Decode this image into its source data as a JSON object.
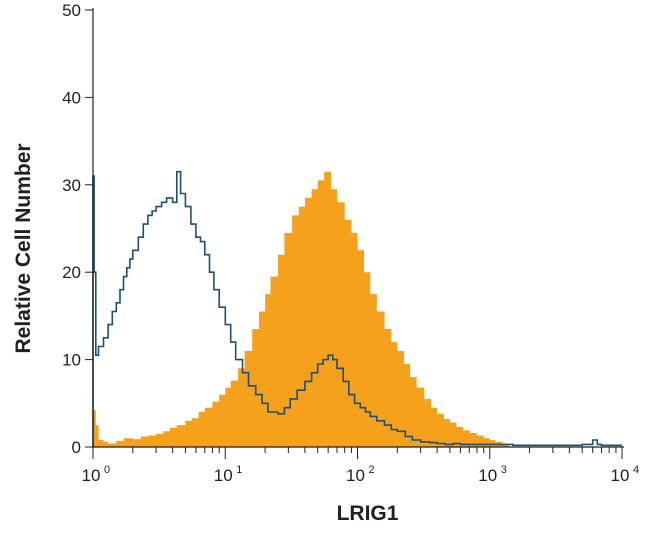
{
  "chart_data": {
    "type": "area",
    "xlabel": "LRIG1",
    "ylabel": "Relative Cell Number",
    "x_scale": "log",
    "xlim": [
      1,
      10000
    ],
    "ylim": [
      0,
      50
    ],
    "x_ticks": [
      {
        "value": 1,
        "base": "10",
        "exp": "0"
      },
      {
        "value": 10,
        "base": "10",
        "exp": "1"
      },
      {
        "value": 100,
        "base": "10",
        "exp": "2"
      },
      {
        "value": 1000,
        "base": "10",
        "exp": "3"
      },
      {
        "value": 10000,
        "base": "10",
        "exp": "4"
      }
    ],
    "y_ticks": [
      {
        "value": 0,
        "label": "0"
      },
      {
        "value": 10,
        "label": "10"
      },
      {
        "value": 20,
        "label": "20"
      },
      {
        "value": 30,
        "label": "30"
      },
      {
        "value": 40,
        "label": "40"
      },
      {
        "value": 50,
        "label": "50"
      }
    ],
    "grid": false,
    "legend": "none",
    "series": [
      {
        "style": "filled",
        "color": "#f5a11c",
        "x": [
          1.0,
          1.05,
          1.1,
          1.2,
          1.3,
          1.5,
          1.7,
          2.0,
          2.3,
          2.6,
          3.0,
          3.4,
          3.8,
          4.3,
          5.0,
          5.6,
          6.3,
          7.0,
          8.0,
          9.0,
          10,
          11,
          12.5,
          14,
          16,
          18,
          20,
          22,
          25,
          28,
          32,
          36,
          40,
          45,
          50,
          56,
          63,
          70,
          80,
          90,
          100,
          112,
          125,
          140,
          160,
          180,
          200,
          225,
          250,
          280,
          320,
          360,
          400,
          450,
          500,
          560,
          630,
          710,
          800,
          900,
          1000,
          1100,
          1250,
          1400
        ],
        "y": [
          4.2,
          2.5,
          0.8,
          0.6,
          0.4,
          0.7,
          1.0,
          0.9,
          1.2,
          1.3,
          1.5,
          1.8,
          2.2,
          2.5,
          3.0,
          3.3,
          4.0,
          4.5,
          5.2,
          6.0,
          6.8,
          7.6,
          9.0,
          11.0,
          13.5,
          15.5,
          17.5,
          19.5,
          22.0,
          24.5,
          26.5,
          27.5,
          28.5,
          29.5,
          30.5,
          31.5,
          29.5,
          28.0,
          26.0,
          24.5,
          22.5,
          20.0,
          17.5,
          15.5,
          13.5,
          12.0,
          11.0,
          9.5,
          8.0,
          6.8,
          5.5,
          4.5,
          3.8,
          3.2,
          2.8,
          2.3,
          1.9,
          1.6,
          1.3,
          1.0,
          0.8,
          0.6,
          0.4,
          0
        ]
      },
      {
        "style": "outline",
        "color": "#1f4f73",
        "x": [
          1.0,
          1.02,
          1.05,
          1.1,
          1.2,
          1.3,
          1.4,
          1.5,
          1.6,
          1.7,
          1.8,
          1.9,
          2.0,
          2.2,
          2.4,
          2.6,
          2.8,
          3.0,
          3.3,
          3.6,
          4.0,
          4.3,
          4.6,
          5.0,
          5.5,
          6.0,
          6.5,
          7.0,
          7.6,
          8.2,
          9.0,
          10,
          11,
          12,
          13.5,
          15,
          17,
          19,
          21,
          23,
          25,
          28,
          31,
          35,
          40,
          45,
          50,
          55,
          60,
          65,
          70,
          78,
          86,
          95,
          105,
          115,
          125,
          140,
          160,
          180,
          200,
          230,
          260,
          300,
          350,
          400,
          460,
          530,
          600,
          700,
          800,
          1000,
          1500,
          2000,
          3000,
          4000,
          5000,
          6000,
          6500,
          7000,
          8000,
          10000
        ],
        "y": [
          31,
          20,
          10.5,
          11.5,
          12.5,
          14.0,
          15.5,
          16.5,
          18.0,
          19.5,
          20.5,
          21.5,
          22.5,
          24.0,
          25.5,
          26.5,
          27.0,
          27.5,
          28.0,
          28.5,
          28.0,
          31.5,
          29.0,
          27.5,
          25.5,
          24.0,
          23.5,
          22.0,
          20.0,
          18.0,
          16.0,
          14.0,
          12.0,
          10.0,
          8.5,
          7.0,
          6.0,
          5.0,
          4.0,
          4.0,
          3.8,
          4.5,
          5.5,
          6.5,
          7.5,
          8.5,
          9.5,
          10.0,
          10.5,
          10.0,
          9.0,
          7.5,
          6.0,
          5.0,
          4.5,
          4.0,
          3.5,
          3.0,
          2.5,
          2.0,
          1.8,
          1.2,
          0.8,
          0.6,
          0.5,
          0.4,
          0.3,
          0.4,
          0.3,
          0.3,
          0.3,
          0.3,
          0.2,
          0.2,
          0.2,
          0.2,
          0.3,
          0.8,
          0.3,
          0.2,
          0.2,
          0.2
        ]
      }
    ]
  }
}
